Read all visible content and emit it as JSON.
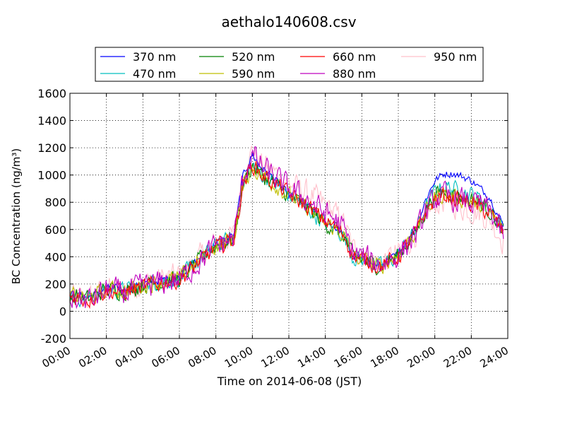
{
  "chart_data": {
    "type": "line",
    "title": "aethalo140608.csv",
    "xlabel": "Time on 2014-06-08 (JST)",
    "ylabel": "BC Concentration (ng/m³)",
    "xlim": [
      0,
      24
    ],
    "ylim": [
      -200,
      1600
    ],
    "x_ticks": [
      0,
      2,
      4,
      6,
      8,
      10,
      12,
      14,
      16,
      18,
      20,
      22,
      24
    ],
    "x_tick_labels": [
      "00:00",
      "02:00",
      "04:00",
      "06:00",
      "08:00",
      "10:00",
      "12:00",
      "14:00",
      "16:00",
      "18:00",
      "20:00",
      "22:00",
      "24:00"
    ],
    "y_ticks": [
      -200,
      0,
      200,
      400,
      600,
      800,
      1000,
      1200,
      1400,
      1600
    ],
    "y_tick_labels": [
      "-200",
      "0",
      "200",
      "400",
      "600",
      "800",
      "1000",
      "1200",
      "1400",
      "1600"
    ],
    "grid": true,
    "legend_position": "top",
    "x": [
      0,
      1,
      2,
      3,
      4,
      5,
      6,
      7,
      8,
      9,
      9.5,
      10,
      10.5,
      11,
      12,
      13,
      14,
      14.5,
      15,
      15.5,
      16,
      17,
      18,
      19,
      19.5,
      20,
      20.5,
      21,
      21.5,
      22,
      22.5,
      23,
      23.5,
      23.8
    ],
    "series": [
      {
        "name": "370 nm",
        "color": "#0000ff",
        "values": [
          130,
          100,
          170,
          160,
          200,
          230,
          250,
          380,
          500,
          560,
          1000,
          1150,
          1050,
          1000,
          850,
          780,
          650,
          620,
          560,
          400,
          380,
          330,
          420,
          620,
          820,
          960,
          1010,
          1010,
          990,
          960,
          900,
          840,
          700,
          620
        ]
      },
      {
        "name": "470 nm",
        "color": "#00bfbf",
        "values": [
          120,
          90,
          160,
          150,
          190,
          220,
          240,
          360,
          480,
          540,
          940,
          1080,
          1000,
          960,
          850,
          760,
          640,
          610,
          560,
          400,
          380,
          330,
          410,
          600,
          760,
          880,
          920,
          900,
          880,
          860,
          820,
          760,
          660,
          580
        ]
      },
      {
        "name": "520 nm",
        "color": "#008000",
        "values": [
          120,
          90,
          160,
          150,
          190,
          220,
          240,
          360,
          480,
          540,
          930,
          1070,
          1000,
          950,
          850,
          760,
          640,
          610,
          560,
          400,
          380,
          330,
          410,
          590,
          740,
          850,
          880,
          860,
          840,
          820,
          790,
          740,
          650,
          570
        ]
      },
      {
        "name": "590 nm",
        "color": "#bfbf00",
        "values": [
          120,
          90,
          160,
          150,
          190,
          220,
          240,
          360,
          480,
          540,
          930,
          1060,
          990,
          950,
          850,
          760,
          640,
          610,
          560,
          400,
          380,
          330,
          410,
          590,
          730,
          830,
          860,
          840,
          820,
          800,
          780,
          730,
          640,
          560
        ]
      },
      {
        "name": "660 nm",
        "color": "#ff0000",
        "values": [
          110,
          80,
          150,
          140,
          180,
          210,
          230,
          350,
          470,
          530,
          940,
          1080,
          1000,
          960,
          860,
          770,
          660,
          620,
          570,
          410,
          380,
          330,
          400,
          580,
          720,
          820,
          850,
          830,
          810,
          790,
          760,
          720,
          630,
          560
        ]
      },
      {
        "name": "880 nm",
        "color": "#bf00bf",
        "values": [
          100,
          80,
          150,
          140,
          180,
          210,
          230,
          350,
          480,
          540,
          980,
          1150,
          1060,
          1010,
          900,
          820,
          720,
          680,
          600,
          430,
          400,
          340,
          410,
          580,
          720,
          820,
          850,
          820,
          810,
          800,
          780,
          740,
          620,
          520
        ]
      },
      {
        "name": "950 nm",
        "color": "#ffc0cb",
        "values": [
          110,
          90,
          170,
          160,
          200,
          240,
          260,
          380,
          500,
          560,
          1000,
          1180,
          1080,
          1040,
          940,
          870,
          780,
          720,
          650,
          460,
          420,
          360,
          420,
          580,
          700,
          790,
          810,
          780,
          760,
          740,
          720,
          680,
          570,
          500
        ]
      }
    ]
  }
}
